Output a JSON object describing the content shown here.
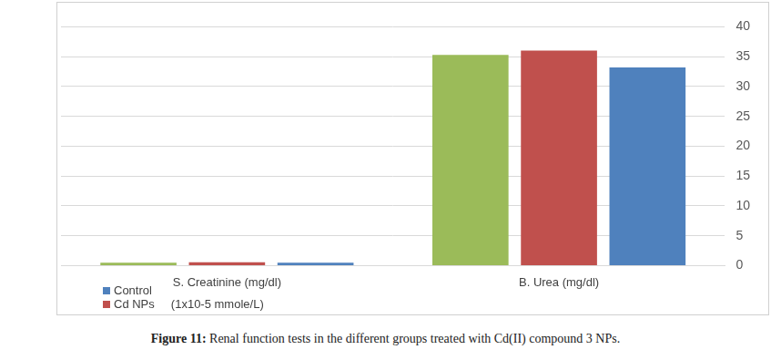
{
  "chart_data": {
    "type": "bar",
    "caption": "Figure 11: Renal function tests in the different groups treated with Cd(II) compound 3 NPs.",
    "categories": [
      "S. Creatinine (mg/dl)",
      "B. Urea (mg/dl)"
    ],
    "series": [
      {
        "name": null,
        "color": "#9bbb59",
        "values": [
          0.5,
          35.3
        ]
      },
      {
        "name": "Cd NPs     (1x10-5 mmole/L)",
        "color": "#c0504d",
        "values": [
          0.55,
          36
        ]
      },
      {
        "name": "Control",
        "color": "#4f81bd",
        "values": [
          0.5,
          33.2
        ]
      }
    ],
    "ylim": [
      0,
      40
    ],
    "yticks": [
      0,
      5,
      10,
      15,
      20,
      25,
      30,
      35,
      40
    ],
    "grid": true,
    "legend": "bottom-left"
  }
}
